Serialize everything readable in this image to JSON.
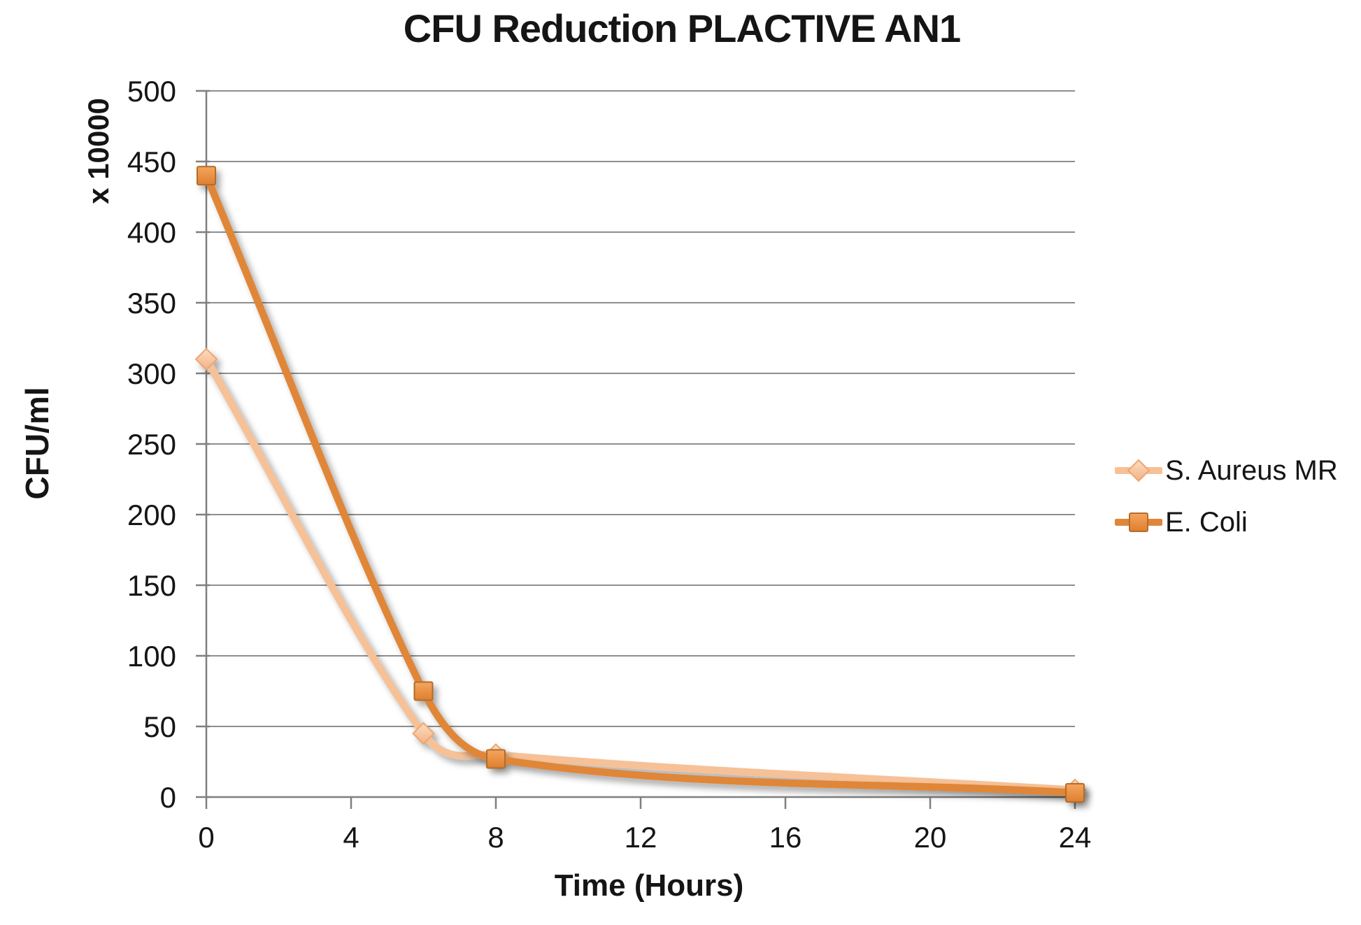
{
  "chart_data": {
    "type": "line",
    "title": "CFU Reduction PLACTIVE AN1",
    "xlabel": "Time (Hours)",
    "ylabel": "CFU/ml",
    "y_unit_label": "x 10000",
    "x": [
      0,
      6,
      8,
      24
    ],
    "series": [
      {
        "name": "S. Aureus MR",
        "values": [
          310,
          45,
          30,
          5
        ],
        "marker": "diamond",
        "line_color": "#F6C197",
        "marker_fill_top": "#FBDDC1",
        "marker_fill_bottom": "#F4B183",
        "marker_border": "#ECA672"
      },
      {
        "name": "E. Coli",
        "values": [
          440,
          75,
          27,
          3
        ],
        "marker": "square",
        "line_color": "#E08639",
        "marker_fill_top": "#F5A55F",
        "marker_fill_bottom": "#DE7F2E",
        "marker_border": "#B26D2B"
      }
    ],
    "xlim": [
      0,
      24
    ],
    "ylim": [
      0,
      500
    ],
    "x_ticks": [
      0,
      4,
      8,
      12,
      16,
      20,
      24
    ],
    "y_ticks": [
      0,
      50,
      100,
      150,
      200,
      250,
      300,
      350,
      400,
      450,
      500
    ],
    "grid": "horizontal",
    "legend_position": "right",
    "colors": {
      "background": "#FFFFFF",
      "grid": "#8E8E8E",
      "axis": "#7F7F7F",
      "text": "#151515"
    }
  }
}
